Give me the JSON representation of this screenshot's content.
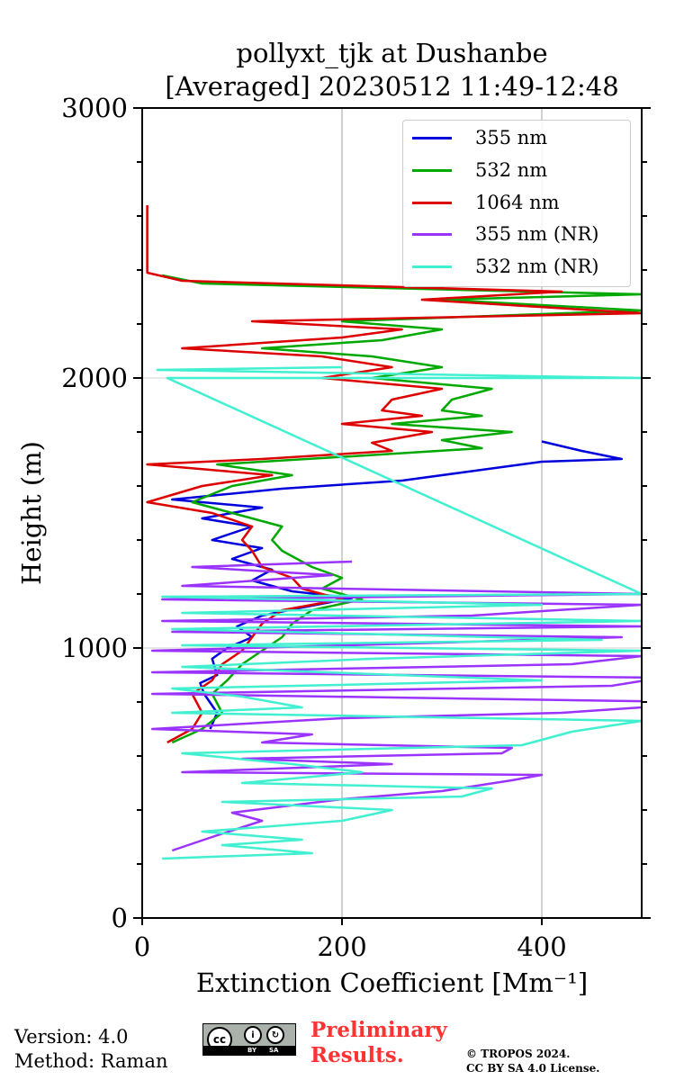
{
  "chart_data": {
    "type": "line",
    "title_line1": "pollyxt_tjk at Dushanbe",
    "title_line2": "[Averaged] 20230512 11:49-12:48",
    "xlabel": "Extinction Coefficient [Mm⁻¹]",
    "ylabel": "Height (m)",
    "xlim": [
      0,
      500
    ],
    "ylim": [
      0,
      3000
    ],
    "xticks": [
      0,
      200,
      400
    ],
    "yticks": [
      0,
      1000,
      2000,
      3000
    ],
    "grid": "vertical lines at x ticks",
    "legend_position": "top-right",
    "series": [
      {
        "name": "355 nm",
        "color": "#0000dd",
        "points": [
          [
            68,
            700
          ],
          [
            75,
            760
          ],
          [
            62,
            830
          ],
          [
            58,
            870
          ],
          [
            75,
            900
          ],
          [
            70,
            960
          ],
          [
            85,
            1000
          ],
          [
            110,
            1040
          ],
          [
            95,
            1080
          ],
          [
            120,
            1120
          ],
          [
            160,
            1150
          ],
          [
            210,
            1185
          ],
          [
            150,
            1210
          ],
          [
            110,
            1250
          ],
          [
            130,
            1290
          ],
          [
            90,
            1330
          ],
          [
            120,
            1370
          ],
          [
            70,
            1400
          ],
          [
            110,
            1450
          ],
          [
            60,
            1480
          ],
          [
            120,
            1520
          ],
          [
            30,
            1550
          ],
          [
            140,
            1590
          ],
          [
            260,
            1620
          ],
          [
            320,
            1650
          ],
          [
            400,
            1690
          ],
          [
            480,
            1700
          ],
          [
            440,
            1730
          ],
          [
            400,
            1765
          ]
        ]
      },
      {
        "name": "532 nm",
        "color": "#00a800",
        "points": [
          [
            30,
            650
          ],
          [
            60,
            700
          ],
          [
            80,
            760
          ],
          [
            70,
            830
          ],
          [
            85,
            880
          ],
          [
            100,
            940
          ],
          [
            120,
            990
          ],
          [
            140,
            1040
          ],
          [
            150,
            1090
          ],
          [
            170,
            1140
          ],
          [
            220,
            1180
          ],
          [
            180,
            1220
          ],
          [
            200,
            1260
          ],
          [
            170,
            1300
          ],
          [
            140,
            1360
          ],
          [
            130,
            1400
          ],
          [
            140,
            1450
          ],
          [
            90,
            1500
          ],
          [
            50,
            1540
          ],
          [
            90,
            1600
          ],
          [
            150,
            1640
          ],
          [
            75,
            1680
          ],
          [
            210,
            1710
          ],
          [
            340,
            1740
          ],
          [
            300,
            1770
          ],
          [
            370,
            1800
          ],
          [
            250,
            1830
          ],
          [
            340,
            1860
          ],
          [
            300,
            1880
          ],
          [
            310,
            1920
          ],
          [
            350,
            1960
          ],
          [
            230,
            2000
          ],
          [
            300,
            2040
          ],
          [
            230,
            2080
          ],
          [
            120,
            2110
          ],
          [
            240,
            2140
          ],
          [
            300,
            2180
          ],
          [
            200,
            2210
          ],
          [
            500,
            2250
          ],
          [
            300,
            2290
          ],
          [
            500,
            2310
          ],
          [
            60,
            2350
          ],
          [
            20,
            2380
          ]
        ]
      },
      {
        "name": "1064 nm",
        "color": "#dd0000",
        "points": [
          [
            25,
            650
          ],
          [
            50,
            700
          ],
          [
            60,
            760
          ],
          [
            50,
            830
          ],
          [
            70,
            880
          ],
          [
            80,
            940
          ],
          [
            100,
            990
          ],
          [
            110,
            1040
          ],
          [
            120,
            1090
          ],
          [
            140,
            1140
          ],
          [
            200,
            1180
          ],
          [
            160,
            1220
          ],
          [
            150,
            1260
          ],
          [
            120,
            1300
          ],
          [
            110,
            1360
          ],
          [
            100,
            1400
          ],
          [
            110,
            1450
          ],
          [
            70,
            1500
          ],
          [
            5,
            1540
          ],
          [
            60,
            1600
          ],
          [
            130,
            1640
          ],
          [
            5,
            1680
          ],
          [
            120,
            1700
          ],
          [
            250,
            1730
          ],
          [
            230,
            1760
          ],
          [
            290,
            1800
          ],
          [
            200,
            1830
          ],
          [
            280,
            1860
          ],
          [
            240,
            1880
          ],
          [
            250,
            1920
          ],
          [
            300,
            1960
          ],
          [
            180,
            2000
          ],
          [
            250,
            2040
          ],
          [
            180,
            2080
          ],
          [
            40,
            2110
          ],
          [
            200,
            2150
          ],
          [
            260,
            2180
          ],
          [
            110,
            2210
          ],
          [
            500,
            2240
          ],
          [
            280,
            2290
          ],
          [
            420,
            2320
          ],
          [
            40,
            2360
          ],
          [
            5,
            2390
          ],
          [
            5,
            2640
          ]
        ]
      },
      {
        "name": "355 nm (NR)",
        "color": "#9b33ff",
        "points": [
          [
            30,
            250
          ],
          [
            70,
            300
          ],
          [
            120,
            360
          ],
          [
            90,
            390
          ],
          [
            200,
            440
          ],
          [
            300,
            470
          ],
          [
            370,
            510
          ],
          [
            400,
            530
          ],
          [
            40,
            540
          ],
          [
            250,
            570
          ],
          [
            100,
            590
          ],
          [
            360,
            610
          ],
          [
            370,
            630
          ],
          [
            120,
            650
          ],
          [
            170,
            680
          ],
          [
            10,
            700
          ],
          [
            200,
            740
          ],
          [
            420,
            760
          ],
          [
            500,
            780
          ],
          [
            550,
            800
          ],
          [
            10,
            830
          ],
          [
            470,
            860
          ],
          [
            520,
            890
          ],
          [
            10,
            910
          ],
          [
            430,
            940
          ],
          [
            500,
            970
          ],
          [
            10,
            990
          ],
          [
            300,
            1020
          ],
          [
            480,
            1040
          ],
          [
            30,
            1060
          ],
          [
            500,
            1080
          ],
          [
            20,
            1100
          ],
          [
            330,
            1120
          ],
          [
            500,
            1160
          ],
          [
            20,
            1180
          ],
          [
            500,
            1200
          ],
          [
            40,
            1230
          ],
          [
            190,
            1270
          ],
          [
            50,
            1300
          ],
          [
            210,
            1320
          ]
        ]
      },
      {
        "name": "532 nm (NR)",
        "color": "#40f0d0",
        "points": [
          [
            20,
            220
          ],
          [
            170,
            240
          ],
          [
            80,
            270
          ],
          [
            160,
            290
          ],
          [
            60,
            320
          ],
          [
            200,
            360
          ],
          [
            250,
            400
          ],
          [
            80,
            430
          ],
          [
            320,
            450
          ],
          [
            350,
            480
          ],
          [
            100,
            500
          ],
          [
            220,
            540
          ],
          [
            150,
            570
          ],
          [
            40,
            610
          ],
          [
            380,
            640
          ],
          [
            430,
            690
          ],
          [
            500,
            730
          ],
          [
            30,
            760
          ],
          [
            160,
            780
          ],
          [
            100,
            820
          ],
          [
            30,
            850
          ],
          [
            400,
            880
          ],
          [
            40,
            930
          ],
          [
            230,
            960
          ],
          [
            500,
            990
          ],
          [
            40,
            1010
          ],
          [
            460,
            1030
          ],
          [
            30,
            1070
          ],
          [
            500,
            1100
          ],
          [
            40,
            1130
          ],
          [
            400,
            1160
          ],
          [
            20,
            1190
          ],
          [
            500,
            1200
          ],
          [
            25,
            2000
          ],
          [
            500,
            2000
          ],
          [
            15,
            2030
          ],
          [
            200,
            2040
          ]
        ]
      }
    ]
  },
  "footer": {
    "version": "Version: 4.0",
    "method": "Method: Raman",
    "preliminary_line1": "Preliminary",
    "preliminary_line2": "Results.",
    "copyright_line1": "© TROPOS 2024.",
    "copyright_line2": "CC BY SA 4.0 License.",
    "cc_badge_label": "cc",
    "cc_by": "BY",
    "cc_sa": "SA"
  }
}
